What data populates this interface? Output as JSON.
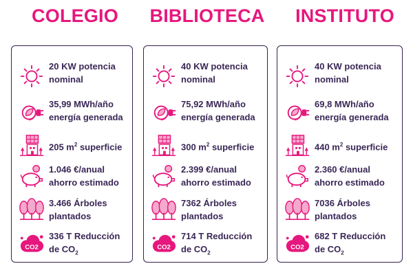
{
  "columns": [
    {
      "title": "COLEGIO",
      "potencia": "20 KW potencia",
      "potencia_sub": "nominal",
      "energia": "35,99 MWh/año",
      "energia_sub": "energía generada",
      "superficie_value": "205 m",
      "superficie_exp": "2",
      "superficie_label": " superficie",
      "ahorro": "1.046 €/anual",
      "ahorro_sub": "ahorro estimado",
      "arboles": "3.466 Árboles",
      "arboles_sub": "plantados",
      "co2": "336 T Reducción",
      "co2_sub_prefix": "de CO",
      "co2_sub_index": "2"
    },
    {
      "title": "BIBLIOTECA",
      "potencia": "40 KW potencia",
      "potencia_sub": "nominal",
      "energia": "75,92 MWh/año",
      "energia_sub": "energía generada",
      "superficie_value": "300 m",
      "superficie_exp": "2",
      "superficie_label": " superficie",
      "ahorro": "2.399 €/anual",
      "ahorro_sub": "ahorro estimado",
      "arboles": "7362 Árboles",
      "arboles_sub": "plantados",
      "co2": "714 T Reducción",
      "co2_sub_prefix": "de CO",
      "co2_sub_index": "2"
    },
    {
      "title": "INSTITUTO",
      "potencia": "40 KW potencia",
      "potencia_sub": "nominal",
      "energia": "69,8 MWh/año",
      "energia_sub": "energía generada",
      "superficie_value": "440 m",
      "superficie_exp": "2",
      "superficie_label": " superficie",
      "ahorro": "2.360 €/anual",
      "ahorro_sub": "ahorro estimado",
      "arboles": "7036 Árboles",
      "arboles_sub": "plantados",
      "co2": "682 T Reducción",
      "co2_sub_prefix": "de CO",
      "co2_sub_index": "2"
    }
  ],
  "icons": {
    "sun": "sun-icon",
    "plug": "plug-leaf-icon",
    "solar": "solar-panel-icon",
    "piggy": "piggy-bank-icon",
    "trees": "trees-icon",
    "co2_badge": "CO2",
    "co2_badge_sub": "2"
  },
  "colors": {
    "accent": "#e6177d",
    "text": "#3a2756",
    "border": "#33214f",
    "icon_soft": "#f5a9cc"
  }
}
